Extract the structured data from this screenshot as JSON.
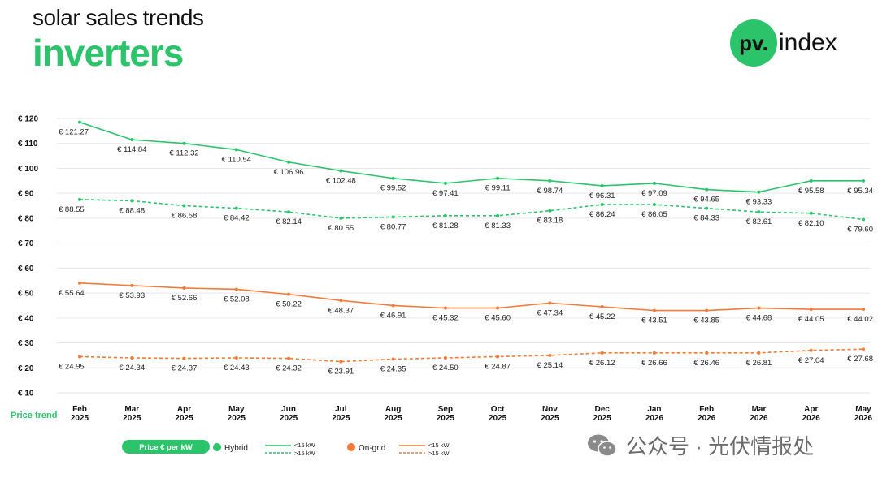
{
  "header": {
    "subtitle": "solar sales trends",
    "title": "inverters"
  },
  "logo": {
    "circle_text": "pv.",
    "text": "index"
  },
  "watermark": {
    "text": "公众号 · 光伏情报处"
  },
  "colors": {
    "green": "#2cc46b",
    "orange": "#f27b3a",
    "grid": "#e6e6e6"
  },
  "chart_data": {
    "type": "line",
    "row_label": "Price trend",
    "categories": [
      [
        "Feb",
        "2025"
      ],
      [
        "Mar",
        "2025"
      ],
      [
        "Apr",
        "2025"
      ],
      [
        "May",
        "2025"
      ],
      [
        "Jun",
        "2025"
      ],
      [
        "Jul",
        "2025"
      ],
      [
        "Aug",
        "2025"
      ],
      [
        "Sep",
        "2025"
      ],
      [
        "Oct",
        "2025"
      ],
      [
        "Nov",
        "2025"
      ],
      [
        "Dec",
        "2025"
      ],
      [
        "Jan",
        "2026"
      ],
      [
        "Feb",
        "2026"
      ],
      [
        "Mar",
        "2026"
      ],
      [
        "Apr",
        "2026"
      ],
      [
        "May",
        "2026"
      ]
    ],
    "y_ticks": [
      "€ 120",
      "€ 110",
      "€ 100",
      "€ 90",
      "€ 80",
      "€ 70",
      "€ 60",
      "€ 50",
      "€ 40",
      "€ 30",
      "€ 20",
      "€ 10"
    ],
    "ylim": [
      10,
      120
    ],
    "series": [
      {
        "group": "Hybrid",
        "name": "<15 kW",
        "color": "#2cc46b",
        "dashed": false,
        "values": [
          118.5,
          111.5,
          110.0,
          107.5,
          102.5,
          99.0,
          96.0,
          94.0,
          96.0,
          95.0,
          93.0,
          94.0,
          91.5,
          90.5,
          95.0,
          95.0
        ],
        "labels": [
          "€ 121.27",
          "€ 114.84",
          "€ 112.32",
          "€ 110.54",
          "€ 106.96",
          "€ 102.48",
          "€ 99.52",
          "€ 97.41",
          "€ 99.11",
          "€ 98.74",
          "€ 96.31",
          "€ 97.09",
          "€ 94.65",
          "€ 93.33",
          "€ 95.58",
          "€ 95.34"
        ]
      },
      {
        "group": "Hybrid",
        "name": ">15 kW",
        "color": "#2cc46b",
        "dashed": true,
        "values": [
          87.5,
          87.0,
          85.0,
          84.0,
          82.5,
          80.0,
          80.5,
          81.0,
          81.0,
          83.0,
          85.5,
          85.5,
          84.0,
          82.5,
          82.0,
          79.5
        ],
        "labels": [
          "€ 88.55",
          "€ 88.48",
          "€ 86.58",
          "€ 84.42",
          "€ 82.14",
          "€ 80.55",
          "€ 80.77",
          "€ 81.28",
          "€ 81.33",
          "€ 83.18",
          "€ 86.24",
          "€ 86.05",
          "€ 84.33",
          "€ 82.61",
          "€ 82.10",
          "€ 79.60"
        ]
      },
      {
        "group": "On-grid",
        "name": "<15 kW",
        "color": "#f27b3a",
        "dashed": false,
        "values": [
          54.0,
          53.0,
          52.0,
          51.5,
          49.5,
          47.0,
          45.0,
          44.0,
          44.0,
          46.0,
          44.5,
          43.0,
          43.0,
          44.0,
          43.5,
          43.5
        ],
        "labels": [
          "€ 55.64",
          "€ 53.93",
          "€ 52.66",
          "€ 52.08",
          "€ 50.22",
          "€ 48.37",
          "€ 46.91",
          "€ 45.32",
          "€ 45.60",
          "€ 47.34",
          "€ 45.22",
          "€ 43.51",
          "€ 43.85",
          "€ 44.68",
          "€ 44.05",
          "€ 44.02"
        ]
      },
      {
        "group": "On-grid",
        "name": ">15 kW",
        "color": "#f27b3a",
        "dashed": true,
        "values": [
          24.5,
          24.0,
          23.8,
          24.0,
          23.8,
          22.5,
          23.5,
          24.0,
          24.5,
          25.0,
          26.0,
          26.0,
          26.0,
          26.0,
          27.0,
          27.5
        ],
        "labels": [
          "€ 24.95",
          "€ 24.34",
          "€ 24.37",
          "€ 24.43",
          "€ 24.32",
          "€ 23.91",
          "€ 24.35",
          "€ 24.50",
          "€ 24.87",
          "€ 25.14",
          "€ 26.12",
          "€ 26.66",
          "€ 26.46",
          "€ 26.81",
          "€ 27.04",
          "€ 27.68"
        ]
      }
    ],
    "legend": {
      "badge": "Price € per kW",
      "groups": [
        {
          "name": "Hybrid",
          "color": "#2cc46b",
          "solid": "<15 kW",
          "dashed": ">15 kW"
        },
        {
          "name": "On-grid",
          "color": "#f27b3a",
          "solid": "<15 kW",
          "dashed": ">15 kW"
        }
      ]
    },
    "grid": true
  }
}
